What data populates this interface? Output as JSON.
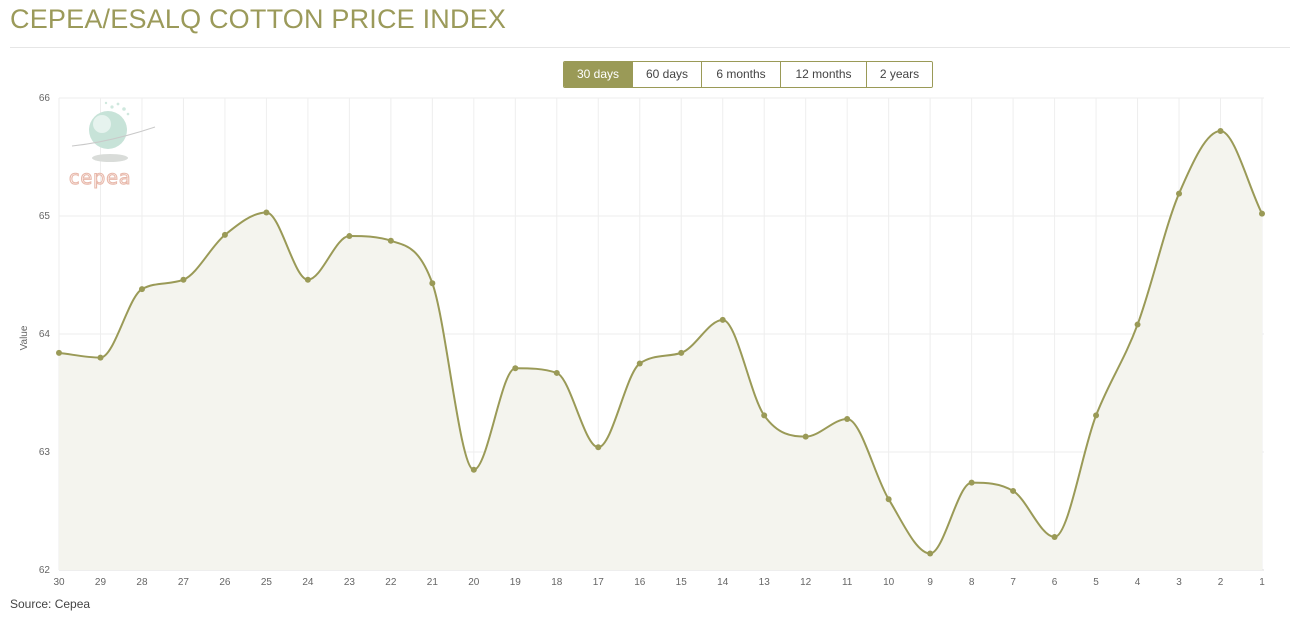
{
  "page": {
    "title": "CEPEA/ESALQ COTTON PRICE INDEX",
    "source": "Source: Cepea"
  },
  "range_tabs": [
    {
      "label": "30 days",
      "active": true
    },
    {
      "label": "60 days",
      "active": false
    },
    {
      "label": "6 months",
      "active": false
    },
    {
      "label": "12 months",
      "active": false
    },
    {
      "label": "2 years",
      "active": false
    }
  ],
  "logo": {
    "text": "cepea"
  },
  "colors": {
    "accent": "#9a9a57",
    "line": "#9a9a57",
    "area_fill": "#f4f4ee",
    "grid": "#eeeeee"
  },
  "chart_data": {
    "type": "area",
    "title": "",
    "xlabel": "",
    "ylabel": "Value",
    "ylim": [
      62,
      66
    ],
    "yticks": [
      "62",
      "63",
      "64",
      "65",
      "66"
    ],
    "grid": true,
    "categories": [
      "30",
      "29",
      "28",
      "27",
      "26",
      "25",
      "24",
      "23",
      "22",
      "21",
      "20",
      "19",
      "18",
      "17",
      "16",
      "15",
      "14",
      "13",
      "12",
      "11",
      "10",
      "9",
      "8",
      "7",
      "6",
      "5",
      "4",
      "3",
      "2",
      "1"
    ],
    "series": [
      {
        "values": [
          63.84,
          63.8,
          64.38,
          64.46,
          64.84,
          65.03,
          64.46,
          64.83,
          64.79,
          64.43,
          62.85,
          63.71,
          63.67,
          63.04,
          63.75,
          63.84,
          64.12,
          63.31,
          63.13,
          63.28,
          62.6,
          62.14,
          62.74,
          62.67,
          62.28,
          63.31,
          64.08,
          65.19,
          65.72,
          65.02
        ]
      }
    ]
  }
}
